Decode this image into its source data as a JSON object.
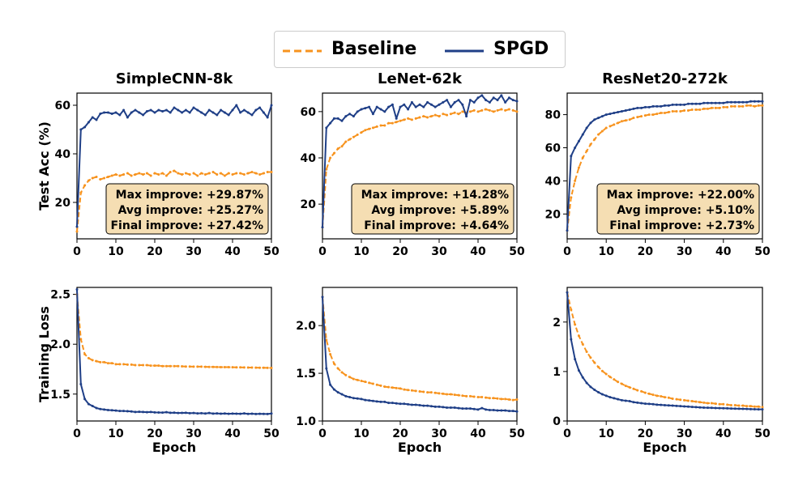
{
  "legend": {
    "entries": [
      {
        "label": "Baseline",
        "color": "#f7931e",
        "dash": true
      },
      {
        "label": "SPGD",
        "color": "#1f3f87",
        "dash": false
      }
    ]
  },
  "colors": {
    "baseline": "#f7931e",
    "spgd": "#1f3f87",
    "annotation_fill": "#f5deb3"
  },
  "chart_data": [
    {
      "type": "line",
      "row": 0,
      "col": 0,
      "title": "SimpleCNN-8k",
      "xlabel": "",
      "ylabel": "Test Acc (%)",
      "xlim": [
        0,
        50
      ],
      "ylim": [
        5,
        65
      ],
      "xticks": [
        0,
        10,
        20,
        30,
        40,
        50
      ],
      "yticks": [
        20,
        40,
        60
      ],
      "annotation": [
        "Max improve: +29.87%",
        "Avg improve: +25.27%",
        "Final improve: +27.42%"
      ],
      "series": [
        {
          "name": "Baseline",
          "values": [
            8,
            24,
            27,
            29,
            30,
            30.5,
            29.5,
            30,
            30.5,
            31,
            31.5,
            31,
            31.5,
            32,
            31,
            31.5,
            32,
            31.5,
            32,
            31,
            32,
            31.5,
            32,
            31,
            32.5,
            33,
            32,
            31.5,
            32,
            31.5,
            32,
            31,
            32,
            31.5,
            32,
            32.5,
            31.5,
            32,
            31,
            32,
            31.5,
            32,
            32,
            31.5,
            32,
            32.5,
            32,
            31.5,
            32,
            32.5,
            32.5
          ]
        },
        {
          "name": "SPGD",
          "values": [
            10,
            50,
            51,
            53,
            55,
            54,
            56.5,
            57,
            57,
            56.5,
            57,
            56,
            58,
            55,
            57,
            58,
            57,
            56,
            57.5,
            58,
            57,
            58,
            57.5,
            58,
            57,
            59,
            58,
            57,
            58,
            57,
            59,
            58,
            57,
            56,
            58,
            57,
            56,
            58,
            57,
            56,
            58,
            60,
            57,
            58,
            57,
            56,
            58,
            59,
            57,
            55,
            60
          ]
        }
      ]
    },
    {
      "type": "line",
      "row": 0,
      "col": 1,
      "title": "LeNet-62k",
      "xlabel": "",
      "ylabel": "",
      "xlim": [
        0,
        50
      ],
      "ylim": [
        5,
        68
      ],
      "xticks": [
        0,
        10,
        20,
        30,
        40,
        50
      ],
      "yticks": [
        20,
        40,
        60
      ],
      "annotation": [
        "Max improve: +14.28%",
        "Avg improve: +5.89%",
        "Final improve: +4.64%"
      ],
      "series": [
        {
          "name": "Baseline",
          "values": [
            10,
            35,
            40,
            42,
            44,
            45,
            47,
            48,
            49,
            50,
            51,
            52,
            52.5,
            53,
            53.5,
            54,
            54,
            55,
            55,
            55.5,
            56,
            56.5,
            57,
            56.5,
            57,
            57.5,
            58,
            57.5,
            58,
            58.5,
            58,
            59,
            58.5,
            59,
            59.5,
            59,
            60,
            59.5,
            60,
            60.5,
            60,
            60.5,
            61,
            60.5,
            60,
            60.5,
            61,
            60.5,
            61,
            60.5,
            60
          ]
        },
        {
          "name": "SPGD",
          "values": [
            10,
            53,
            55,
            57,
            57,
            56,
            58,
            59,
            58,
            60,
            61,
            61.5,
            62,
            59,
            62,
            61,
            60,
            62,
            63,
            57,
            62,
            63,
            61,
            64,
            62,
            63,
            62,
            64,
            63,
            62,
            63,
            64,
            65,
            62,
            64,
            65,
            63,
            58,
            65,
            64,
            66,
            67,
            65,
            64,
            66,
            65,
            67,
            64,
            66,
            65,
            64.5
          ]
        }
      ]
    },
    {
      "type": "line",
      "row": 0,
      "col": 2,
      "title": "ResNet20-272k",
      "xlabel": "",
      "ylabel": "",
      "xlim": [
        0,
        50
      ],
      "ylim": [
        5,
        93
      ],
      "xticks": [
        0,
        10,
        20,
        30,
        40,
        50
      ],
      "yticks": [
        20,
        40,
        60,
        80
      ],
      "annotation": [
        "Max improve: +22.00%",
        "Avg improve: +5.10%",
        "Final improve: +2.73%"
      ],
      "series": [
        {
          "name": "Baseline",
          "values": [
            10,
            30,
            40,
            48,
            54,
            58,
            62,
            65,
            68,
            70,
            72,
            73,
            74,
            75,
            76,
            76.5,
            77,
            78,
            78.5,
            79,
            79.5,
            80,
            80,
            80.5,
            81,
            81,
            81.5,
            82,
            82,
            82,
            82.5,
            82.5,
            83,
            83,
            83,
            83.5,
            83.5,
            84,
            84,
            84,
            84.5,
            84.5,
            85,
            85,
            85,
            85,
            85.5,
            85.5,
            85,
            85.5,
            85.5
          ]
        },
        {
          "name": "SPGD",
          "values": [
            10,
            55,
            60,
            64,
            68,
            72,
            75,
            77,
            78,
            79,
            80,
            80.5,
            81,
            81.5,
            82,
            82.5,
            83,
            83.5,
            84,
            84,
            84.5,
            84.5,
            85,
            85,
            85,
            85.5,
            85.5,
            86,
            86,
            86,
            86,
            86.5,
            86.5,
            86.5,
            86.5,
            87,
            87,
            87,
            87,
            87,
            87,
            87.5,
            87.5,
            87.5,
            87.5,
            87.5,
            87.5,
            88,
            88,
            88,
            88
          ]
        }
      ]
    },
    {
      "type": "line",
      "row": 1,
      "col": 0,
      "title": "",
      "xlabel": "Epoch",
      "ylabel": "Training Loss",
      "xlim": [
        0,
        50
      ],
      "ylim": [
        1.23,
        2.57
      ],
      "xticks": [
        0,
        10,
        20,
        30,
        40,
        50
      ],
      "yticks": [
        1.5,
        2.0,
        2.5
      ],
      "annotation": [],
      "series": [
        {
          "name": "Baseline",
          "values": [
            2.5,
            2.05,
            1.9,
            1.86,
            1.84,
            1.83,
            1.82,
            1.82,
            1.81,
            1.81,
            1.8,
            1.8,
            1.8,
            1.795,
            1.795,
            1.79,
            1.79,
            1.79,
            1.79,
            1.785,
            1.785,
            1.785,
            1.78,
            1.78,
            1.78,
            1.78,
            1.78,
            1.778,
            1.776,
            1.776,
            1.775,
            1.775,
            1.775,
            1.773,
            1.772,
            1.772,
            1.771,
            1.77,
            1.77,
            1.77,
            1.769,
            1.768,
            1.768,
            1.767,
            1.766,
            1.766,
            1.765,
            1.764,
            1.764,
            1.763,
            1.762
          ]
        },
        {
          "name": "SPGD",
          "values": [
            2.55,
            1.6,
            1.45,
            1.4,
            1.38,
            1.36,
            1.35,
            1.345,
            1.34,
            1.338,
            1.335,
            1.33,
            1.33,
            1.328,
            1.325,
            1.32,
            1.322,
            1.32,
            1.318,
            1.32,
            1.316,
            1.315,
            1.314,
            1.318,
            1.312,
            1.313,
            1.31,
            1.311,
            1.312,
            1.308,
            1.31,
            1.306,
            1.308,
            1.305,
            1.31,
            1.304,
            1.306,
            1.303,
            1.305,
            1.302,
            1.304,
            1.303,
            1.302,
            1.306,
            1.301,
            1.303,
            1.3,
            1.302,
            1.301,
            1.3,
            1.305
          ]
        }
      ]
    },
    {
      "type": "line",
      "row": 1,
      "col": 1,
      "title": "",
      "xlabel": "Epoch",
      "ylabel": "",
      "xlim": [
        0,
        50
      ],
      "ylim": [
        1.0,
        2.4
      ],
      "xticks": [
        0,
        10,
        20,
        30,
        40,
        50
      ],
      "yticks": [
        1.0,
        1.5,
        2.0
      ],
      "annotation": [],
      "series": [
        {
          "name": "Baseline",
          "values": [
            2.3,
            1.85,
            1.7,
            1.6,
            1.55,
            1.51,
            1.48,
            1.46,
            1.44,
            1.43,
            1.42,
            1.41,
            1.4,
            1.39,
            1.38,
            1.37,
            1.36,
            1.355,
            1.35,
            1.345,
            1.34,
            1.33,
            1.325,
            1.32,
            1.315,
            1.31,
            1.305,
            1.3,
            1.3,
            1.295,
            1.29,
            1.285,
            1.28,
            1.28,
            1.275,
            1.27,
            1.265,
            1.26,
            1.26,
            1.255,
            1.25,
            1.25,
            1.245,
            1.24,
            1.24,
            1.235,
            1.23,
            1.23,
            1.225,
            1.22,
            1.225
          ]
        },
        {
          "name": "SPGD",
          "values": [
            2.3,
            1.55,
            1.38,
            1.33,
            1.3,
            1.28,
            1.26,
            1.25,
            1.24,
            1.235,
            1.23,
            1.22,
            1.215,
            1.21,
            1.205,
            1.2,
            1.2,
            1.19,
            1.19,
            1.185,
            1.18,
            1.18,
            1.175,
            1.17,
            1.17,
            1.165,
            1.16,
            1.16,
            1.155,
            1.15,
            1.15,
            1.145,
            1.14,
            1.14,
            1.14,
            1.135,
            1.13,
            1.13,
            1.13,
            1.125,
            1.12,
            1.135,
            1.12,
            1.115,
            1.115,
            1.11,
            1.11,
            1.11,
            1.105,
            1.105,
            1.1
          ]
        }
      ]
    },
    {
      "type": "line",
      "row": 1,
      "col": 2,
      "title": "",
      "xlabel": "Epoch",
      "ylabel": "",
      "xlim": [
        0,
        50
      ],
      "ylim": [
        0.0,
        2.7
      ],
      "xticks": [
        0,
        10,
        20,
        30,
        40,
        50
      ],
      "yticks": [
        0,
        1,
        2
      ],
      "annotation": [],
      "series": [
        {
          "name": "Baseline",
          "values": [
            2.6,
            2.25,
            1.95,
            1.72,
            1.55,
            1.4,
            1.28,
            1.18,
            1.09,
            1.01,
            0.95,
            0.89,
            0.84,
            0.79,
            0.75,
            0.71,
            0.68,
            0.65,
            0.62,
            0.6,
            0.57,
            0.55,
            0.53,
            0.51,
            0.5,
            0.48,
            0.47,
            0.45,
            0.44,
            0.43,
            0.42,
            0.41,
            0.4,
            0.39,
            0.38,
            0.37,
            0.36,
            0.36,
            0.35,
            0.34,
            0.34,
            0.33,
            0.32,
            0.32,
            0.31,
            0.31,
            0.3,
            0.3,
            0.29,
            0.29,
            0.28
          ]
        },
        {
          "name": "SPGD",
          "values": [
            2.6,
            1.65,
            1.25,
            1.02,
            0.88,
            0.77,
            0.69,
            0.63,
            0.58,
            0.54,
            0.51,
            0.48,
            0.46,
            0.44,
            0.42,
            0.41,
            0.4,
            0.38,
            0.37,
            0.36,
            0.35,
            0.345,
            0.34,
            0.33,
            0.325,
            0.32,
            0.315,
            0.31,
            0.305,
            0.3,
            0.295,
            0.29,
            0.285,
            0.28,
            0.275,
            0.27,
            0.268,
            0.265,
            0.262,
            0.26,
            0.257,
            0.255,
            0.252,
            0.25,
            0.248,
            0.245,
            0.243,
            0.24,
            0.238,
            0.236,
            0.235
          ]
        }
      ]
    }
  ]
}
